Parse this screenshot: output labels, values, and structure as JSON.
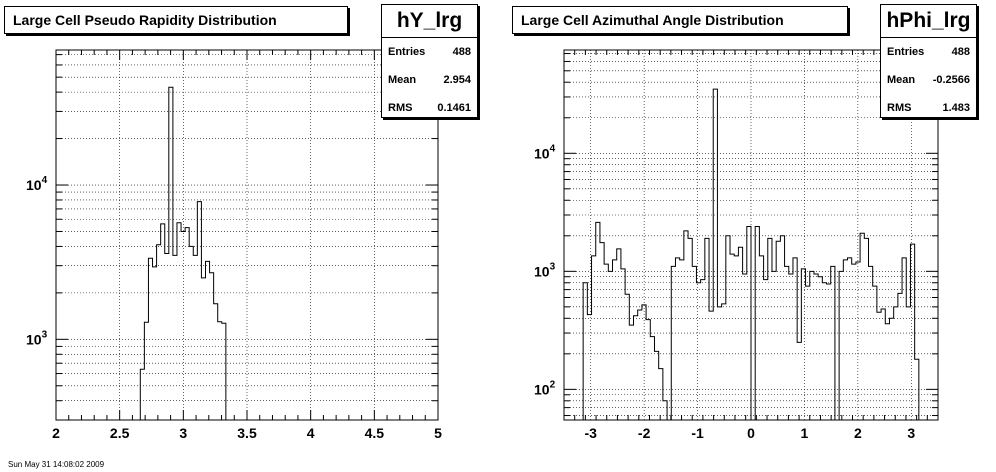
{
  "chart_data": [
    {
      "type": "histogram",
      "title": "Large Cell Pseudo Rapidity Distribution",
      "log_y": true,
      "grid": true,
      "xlim": [
        2,
        5
      ],
      "ylim": [
        300,
        75000
      ],
      "x_ticks": [
        2,
        2.5,
        3,
        3.5,
        4,
        4.5,
        5
      ],
      "x_tick_labels": [
        "2",
        "2.5",
        "3",
        "3.5",
        "4",
        "4.5",
        "5"
      ],
      "y_tick_labels": [
        {
          "base": "10",
          "exp": "3",
          "value": 1000
        },
        {
          "base": "10",
          "exp": "4",
          "value": 10000
        }
      ],
      "bin_width": 0.032,
      "bins": [
        {
          "x": 2.63,
          "y": 300
        },
        {
          "x": 2.662,
          "y": 640
        },
        {
          "x": 2.694,
          "y": 1290
        },
        {
          "x": 2.726,
          "y": 3350
        },
        {
          "x": 2.758,
          "y": 2950
        },
        {
          "x": 2.79,
          "y": 4100
        },
        {
          "x": 2.822,
          "y": 5600
        },
        {
          "x": 2.854,
          "y": 3600
        },
        {
          "x": 2.886,
          "y": 43000
        },
        {
          "x": 2.918,
          "y": 3500
        },
        {
          "x": 2.95,
          "y": 5700
        },
        {
          "x": 2.982,
          "y": 5000
        },
        {
          "x": 3.014,
          "y": 5300
        },
        {
          "x": 3.046,
          "y": 4000
        },
        {
          "x": 3.078,
          "y": 3500
        },
        {
          "x": 3.11,
          "y": 7800
        },
        {
          "x": 3.142,
          "y": 2500
        },
        {
          "x": 3.174,
          "y": 3200
        },
        {
          "x": 3.206,
          "y": 2700
        },
        {
          "x": 3.238,
          "y": 1700
        },
        {
          "x": 3.27,
          "y": 1300
        },
        {
          "x": 3.302,
          "y": 1270
        },
        {
          "x": 3.334,
          "y": 300
        }
      ],
      "stats": {
        "name": "hY_lrg",
        "entries": "488",
        "mean": "2.954",
        "rms": "0.1461"
      }
    },
    {
      "type": "histogram",
      "title": "Large Cell Azimuthal Angle Distribution",
      "log_y": true,
      "grid": true,
      "xlim": [
        -3.5,
        3.5
      ],
      "ylim": [
        55,
        75000
      ],
      "x_ticks": [
        -3,
        -2,
        -1,
        0,
        1,
        2,
        3
      ],
      "x_tick_labels": [
        "-3",
        "-2",
        "-1",
        "0",
        "1",
        "2",
        "3"
      ],
      "y_tick_labels": [
        {
          "base": "10",
          "exp": "2",
          "value": 100
        },
        {
          "base": "10",
          "exp": "3",
          "value": 1000
        },
        {
          "base": "10",
          "exp": "4",
          "value": 10000
        }
      ],
      "bin_width": 0.0785,
      "bins": [
        {
          "x": -3.1416,
          "y": 800
        },
        {
          "x": -3.0631,
          "y": 430
        },
        {
          "x": -2.9845,
          "y": 1350
        },
        {
          "x": -2.906,
          "y": 2600
        },
        {
          "x": -2.8274,
          "y": 1750
        },
        {
          "x": -2.7489,
          "y": 1150
        },
        {
          "x": -2.6704,
          "y": 1000
        },
        {
          "x": -2.5918,
          "y": 1250
        },
        {
          "x": -2.5133,
          "y": 1550
        },
        {
          "x": -2.4347,
          "y": 1050
        },
        {
          "x": -2.3562,
          "y": 640
        },
        {
          "x": -2.2777,
          "y": 350
        },
        {
          "x": -2.1991,
          "y": 420
        },
        {
          "x": -2.1206,
          "y": 470
        },
        {
          "x": -2.042,
          "y": 520
        },
        {
          "x": -1.9635,
          "y": 390
        },
        {
          "x": -1.885,
          "y": 280
        },
        {
          "x": -1.8064,
          "y": 210
        },
        {
          "x": -1.7279,
          "y": 150
        },
        {
          "x": -1.6493,
          "y": 80
        },
        {
          "x": -1.5708,
          "y": 55
        },
        {
          "x": -1.4923,
          "y": 1100
        },
        {
          "x": -1.4137,
          "y": 1300
        },
        {
          "x": -1.3352,
          "y": 1250
        },
        {
          "x": -1.2566,
          "y": 2200
        },
        {
          "x": -1.1781,
          "y": 1900
        },
        {
          "x": -1.0996,
          "y": 1100
        },
        {
          "x": -1.021,
          "y": 800
        },
        {
          "x": -0.9425,
          "y": 850
        },
        {
          "x": -0.8639,
          "y": 1900
        },
        {
          "x": -0.7854,
          "y": 460
        },
        {
          "x": -0.7069,
          "y": 35000
        },
        {
          "x": -0.6283,
          "y": 500
        },
        {
          "x": -0.5498,
          "y": 530
        },
        {
          "x": -0.4712,
          "y": 2000
        },
        {
          "x": -0.3927,
          "y": 1400
        },
        {
          "x": -0.3142,
          "y": 1350
        },
        {
          "x": -0.2356,
          "y": 1600
        },
        {
          "x": -0.1571,
          "y": 950
        },
        {
          "x": -0.0785,
          "y": 2400
        },
        {
          "x": 0.0,
          "y": 55
        },
        {
          "x": 0.0785,
          "y": 2400
        },
        {
          "x": 0.1571,
          "y": 1350
        },
        {
          "x": 0.2356,
          "y": 850
        },
        {
          "x": 0.3142,
          "y": 1900
        },
        {
          "x": 0.3927,
          "y": 1000
        },
        {
          "x": 0.4712,
          "y": 1800
        },
        {
          "x": 0.5498,
          "y": 2000
        },
        {
          "x": 0.6283,
          "y": 1100
        },
        {
          "x": 0.7069,
          "y": 950
        },
        {
          "x": 0.7854,
          "y": 1300
        },
        {
          "x": 0.8639,
          "y": 250
        },
        {
          "x": 0.9425,
          "y": 1050
        },
        {
          "x": 1.021,
          "y": 750
        },
        {
          "x": 1.0996,
          "y": 1000
        },
        {
          "x": 1.1781,
          "y": 950
        },
        {
          "x": 1.2566,
          "y": 900
        },
        {
          "x": 1.3352,
          "y": 800
        },
        {
          "x": 1.4137,
          "y": 780
        },
        {
          "x": 1.4923,
          "y": 1100
        },
        {
          "x": 1.5708,
          "y": 55
        },
        {
          "x": 1.6493,
          "y": 1000
        },
        {
          "x": 1.7279,
          "y": 1250
        },
        {
          "x": 1.8064,
          "y": 1300
        },
        {
          "x": 1.885,
          "y": 1150
        },
        {
          "x": 1.9635,
          "y": 1200
        },
        {
          "x": 2.042,
          "y": 2100
        },
        {
          "x": 2.1206,
          "y": 1900
        },
        {
          "x": 2.1991,
          "y": 1100
        },
        {
          "x": 2.2777,
          "y": 750
        },
        {
          "x": 2.3562,
          "y": 450
        },
        {
          "x": 2.4347,
          "y": 480
        },
        {
          "x": 2.5133,
          "y": 360
        },
        {
          "x": 2.5918,
          "y": 400
        },
        {
          "x": 2.6704,
          "y": 500
        },
        {
          "x": 2.7489,
          "y": 650
        },
        {
          "x": 2.8274,
          "y": 1300
        },
        {
          "x": 2.906,
          "y": 500
        },
        {
          "x": 2.9845,
          "y": 1700
        },
        {
          "x": 3.0631,
          "y": 180
        }
      ],
      "stats": {
        "name": "hPhi_lrg",
        "entries": "488",
        "mean": "-0.2566",
        "rms": "1.483"
      }
    }
  ],
  "stats_labels": {
    "entries": "Entries",
    "mean": "Mean",
    "rms": "RMS"
  },
  "footer": "Sun May 31 14:08:02 2009"
}
